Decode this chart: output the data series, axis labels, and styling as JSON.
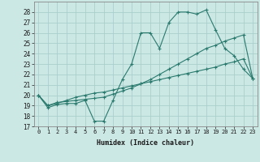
{
  "xlabel": "Humidex (Indice chaleur)",
  "background_color": "#cce8e4",
  "grid_color": "#aacfcc",
  "line_color": "#2a7a6e",
  "xlim": [
    -0.5,
    23.5
  ],
  "ylim": [
    17,
    29
  ],
  "yticks": [
    17,
    18,
    19,
    20,
    21,
    22,
    23,
    24,
    25,
    26,
    27,
    28
  ],
  "xticks": [
    0,
    1,
    2,
    3,
    4,
    5,
    6,
    7,
    8,
    9,
    10,
    11,
    12,
    13,
    14,
    15,
    16,
    17,
    18,
    19,
    20,
    21,
    22,
    23
  ],
  "series": [
    [
      20.0,
      18.8,
      19.1,
      19.2,
      19.2,
      19.5,
      17.5,
      17.5,
      19.5,
      21.5,
      23.0,
      26.0,
      26.0,
      24.5,
      27.0,
      28.0,
      28.0,
      27.8,
      28.2,
      26.3,
      24.5,
      23.8,
      22.5,
      21.6
    ],
    [
      20.0,
      19.0,
      19.3,
      19.4,
      19.5,
      19.6,
      19.7,
      19.8,
      20.1,
      20.4,
      20.7,
      21.1,
      21.5,
      22.0,
      22.5,
      23.0,
      23.5,
      24.0,
      24.5,
      24.8,
      25.2,
      25.5,
      25.8,
      21.6
    ],
    [
      20.0,
      19.0,
      19.2,
      19.5,
      19.8,
      20.0,
      20.2,
      20.3,
      20.5,
      20.7,
      20.9,
      21.1,
      21.3,
      21.5,
      21.7,
      21.9,
      22.1,
      22.3,
      22.5,
      22.7,
      23.0,
      23.2,
      23.5,
      21.6
    ]
  ]
}
